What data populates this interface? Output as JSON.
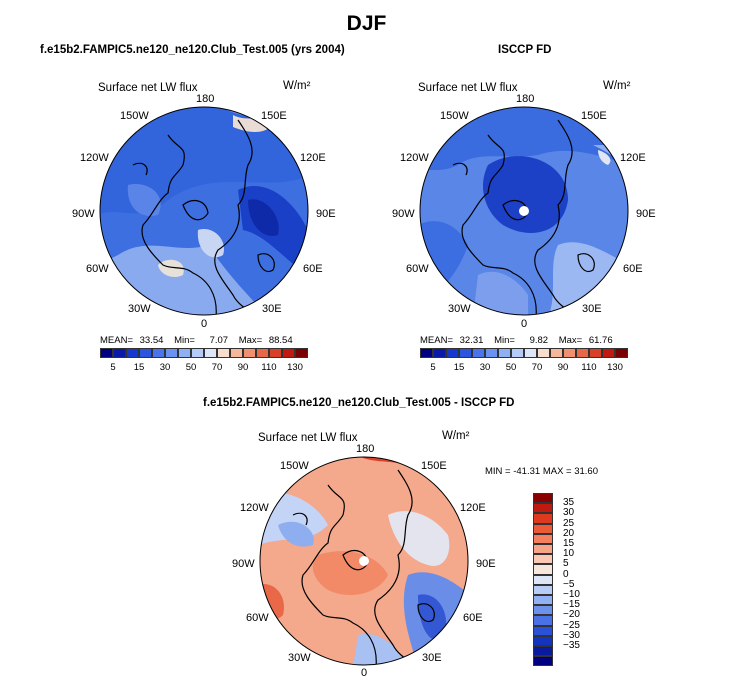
{
  "title": "DJF",
  "panels": {
    "model": {
      "title": "f.e15b2.FAMPIC5.ne120_ne120.Club_Test.005 (yrs 2004)",
      "variable": "Surface net LW flux",
      "units": "W/m²",
      "stats": {
        "mean_label": "MEAN=",
        "mean": "33.54",
        "min_label": "Min=",
        "min": "7.07",
        "max_label": "Max=",
        "max": "88.54"
      }
    },
    "obs": {
      "title": "ISCCP FD",
      "variable": "Surface net LW flux",
      "units": "W/m²",
      "stats": {
        "mean_label": "MEAN=",
        "mean": "32.31",
        "min_label": "Min=",
        "min": "9.82",
        "max_label": "Max=",
        "max": "61.76"
      }
    },
    "diff": {
      "title": "f.e15b2.FAMPIC5.ne120_ne120.Club_Test.005 - ISCCP FD",
      "variable": "Surface net LW flux",
      "units": "W/m²",
      "stats": {
        "min_max": "MIN = -41.31  MAX =  31.60"
      }
    }
  },
  "longitude_labels": {
    "n180": "180",
    "n150w": "150W",
    "n150e": "150E",
    "n120w": "120W",
    "n120e": "120E",
    "n90w": "90W",
    "n90e": "90E",
    "n60w": "60W",
    "n60e": "60E",
    "n30w": "30W",
    "n30e": "30E",
    "n0": "0"
  },
  "colorbar_abs": {
    "labels": [
      "5",
      "15",
      "30",
      "50",
      "70",
      "90",
      "110",
      "130"
    ],
    "colors": [
      "#000080",
      "#0a1aa8",
      "#1638cc",
      "#2a55e0",
      "#4a74ec",
      "#6a92f2",
      "#90b0f6",
      "#b6ccf8",
      "#dfe6f6",
      "#f8dccc",
      "#f6b89a",
      "#f09070",
      "#e66848",
      "#d84028",
      "#c01a10",
      "#7a0000"
    ]
  },
  "colorbar_diff": {
    "labels": [
      "35",
      "30",
      "25",
      "20",
      "15",
      "10",
      "5",
      "0",
      "−5",
      "−10",
      "−15",
      "−20",
      "−25",
      "−30",
      "−35"
    ],
    "colors": [
      "#8a0000",
      "#c01a10",
      "#de3a20",
      "#ec5a38",
      "#f48060",
      "#f8a488",
      "#fac8b4",
      "#f6e6dc",
      "#dde6f6",
      "#b8ccf8",
      "#92b0f4",
      "#6c92ee",
      "#4a72e6",
      "#2a52d8",
      "#1434c0",
      "#0a1aa0",
      "#000080"
    ]
  }
}
